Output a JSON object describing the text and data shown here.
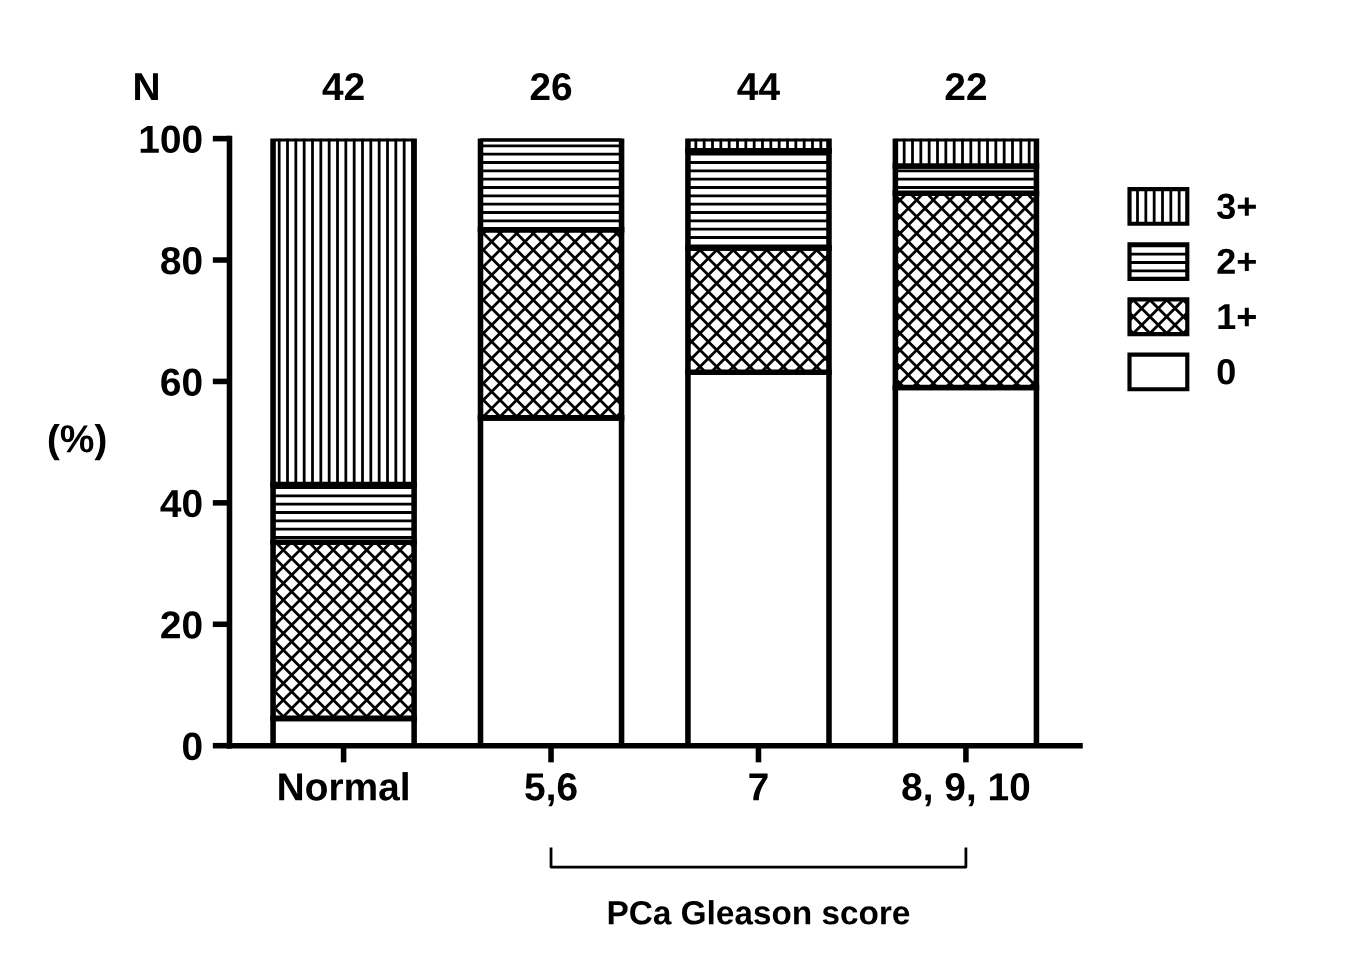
{
  "chart_data": {
    "type": "bar",
    "stacked": true,
    "categories": [
      "Normal",
      "5,6",
      "7",
      "8, 9, 10"
    ],
    "series": [
      {
        "name": "0",
        "color": "#ffffff",
        "values": [
          4.5,
          54,
          61.5,
          59
        ]
      },
      {
        "name": "1+",
        "color": "#000000",
        "values": [
          29,
          31,
          20.5,
          32
        ]
      },
      {
        "name": "2+",
        "color": "#000000",
        "values": [
          9.5,
          15,
          16,
          4.5
        ]
      },
      {
        "name": "3+",
        "color": "#000000",
        "values": [
          57,
          0,
          2,
          4.5
        ]
      }
    ],
    "ylabel": "(%)",
    "xlabel": "PCa Gleason score",
    "ylim": [
      0,
      100
    ],
    "yticks": [
      0,
      20,
      40,
      60,
      80,
      100
    ],
    "annotations": [
      "N",
      "42",
      "26",
      "44",
      "22"
    ],
    "grid": false,
    "legend": "right"
  }
}
